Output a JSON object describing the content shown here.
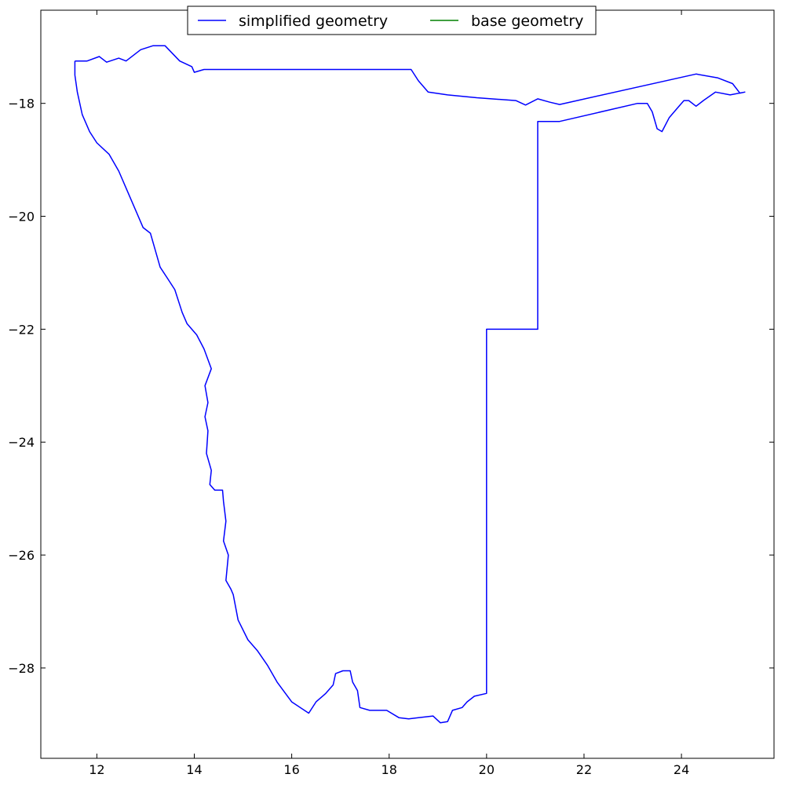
{
  "chart_data": {
    "type": "line",
    "title": "",
    "xlabel": "",
    "ylabel": "",
    "xlim": [
      10.85,
      25.9
    ],
    "ylim": [
      -29.6,
      -16.35
    ],
    "x_ticks": [
      12,
      14,
      16,
      18,
      20,
      22,
      24
    ],
    "x_tick_labels": [
      "12",
      "14",
      "16",
      "18",
      "20",
      "22",
      "24"
    ],
    "y_ticks": [
      -18,
      -20,
      -22,
      -24,
      -26,
      -28
    ],
    "y_tick_labels": [
      "−18",
      "−20",
      "−22",
      "−24",
      "−26",
      "−28"
    ],
    "grid": false,
    "legend": {
      "placement": "top-center",
      "columns": 2
    },
    "series": [
      {
        "name": "simplified geometry",
        "color": "#0000ff",
        "points": [
          [
            11.55,
            -17.25
          ],
          [
            11.8,
            -17.25
          ],
          [
            12.05,
            -17.17
          ],
          [
            12.2,
            -17.27
          ],
          [
            12.45,
            -17.2
          ],
          [
            12.6,
            -17.25
          ],
          [
            12.9,
            -17.05
          ],
          [
            13.15,
            -16.98
          ],
          [
            13.4,
            -16.98
          ],
          [
            13.7,
            -17.25
          ],
          [
            13.95,
            -17.35
          ],
          [
            14.0,
            -17.45
          ],
          [
            14.2,
            -17.4
          ],
          [
            18.45,
            -17.4
          ],
          [
            18.6,
            -17.6
          ],
          [
            18.8,
            -17.8
          ],
          [
            19.2,
            -17.85
          ],
          [
            19.8,
            -17.9
          ],
          [
            20.6,
            -17.95
          ],
          [
            20.8,
            -18.03
          ],
          [
            21.05,
            -17.92
          ],
          [
            21.3,
            -17.98
          ],
          [
            21.5,
            -18.02
          ],
          [
            24.3,
            -17.48
          ],
          [
            24.75,
            -17.55
          ],
          [
            25.05,
            -17.65
          ],
          [
            25.2,
            -17.82
          ],
          [
            25.3,
            -17.8
          ],
          [
            25.0,
            -17.85
          ],
          [
            24.7,
            -17.8
          ],
          [
            24.45,
            -17.95
          ],
          [
            24.3,
            -18.05
          ],
          [
            24.15,
            -17.95
          ],
          [
            24.05,
            -17.95
          ],
          [
            23.9,
            -18.1
          ],
          [
            23.75,
            -18.25
          ],
          [
            23.6,
            -18.5
          ],
          [
            23.5,
            -18.45
          ],
          [
            23.4,
            -18.15
          ],
          [
            23.3,
            -18.0
          ],
          [
            23.1,
            -18.0
          ],
          [
            21.5,
            -18.32
          ],
          [
            21.05,
            -18.32
          ],
          [
            21.05,
            -22.0
          ],
          [
            20.0,
            -22.0
          ],
          [
            20.0,
            -28.45
          ],
          [
            19.75,
            -28.5
          ],
          [
            19.6,
            -28.6
          ],
          [
            19.5,
            -28.7
          ],
          [
            19.3,
            -28.75
          ],
          [
            19.2,
            -28.95
          ],
          [
            19.05,
            -28.97
          ],
          [
            18.9,
            -28.85
          ],
          [
            18.6,
            -28.88
          ],
          [
            18.4,
            -28.9
          ],
          [
            18.2,
            -28.88
          ],
          [
            17.95,
            -28.75
          ],
          [
            17.6,
            -28.75
          ],
          [
            17.4,
            -28.7
          ],
          [
            17.35,
            -28.4
          ],
          [
            17.25,
            -28.25
          ],
          [
            17.2,
            -28.05
          ],
          [
            17.05,
            -28.05
          ],
          [
            16.9,
            -28.1
          ],
          [
            16.85,
            -28.3
          ],
          [
            16.7,
            -28.45
          ],
          [
            16.5,
            -28.6
          ],
          [
            16.35,
            -28.8
          ],
          [
            16.0,
            -28.6
          ],
          [
            15.7,
            -28.25
          ],
          [
            15.5,
            -27.95
          ],
          [
            15.3,
            -27.7
          ],
          [
            15.1,
            -27.5
          ],
          [
            14.9,
            -27.15
          ],
          [
            14.8,
            -26.7
          ],
          [
            14.75,
            -26.6
          ],
          [
            14.65,
            -26.45
          ],
          [
            14.7,
            -26.0
          ],
          [
            14.6,
            -25.75
          ],
          [
            14.65,
            -25.4
          ],
          [
            14.6,
            -25.05
          ],
          [
            14.58,
            -24.85
          ],
          [
            14.42,
            -24.85
          ],
          [
            14.32,
            -24.75
          ],
          [
            14.35,
            -24.5
          ],
          [
            14.25,
            -24.2
          ],
          [
            14.28,
            -23.8
          ],
          [
            14.22,
            -23.55
          ],
          [
            14.28,
            -23.3
          ],
          [
            14.22,
            -23.0
          ],
          [
            14.35,
            -22.7
          ],
          [
            14.2,
            -22.35
          ],
          [
            14.05,
            -22.1
          ],
          [
            13.85,
            -21.9
          ],
          [
            13.75,
            -21.7
          ],
          [
            13.6,
            -21.3
          ],
          [
            13.45,
            -21.1
          ],
          [
            13.3,
            -20.9
          ],
          [
            13.2,
            -20.6
          ],
          [
            13.1,
            -20.3
          ],
          [
            12.95,
            -20.2
          ],
          [
            12.8,
            -19.9
          ],
          [
            12.6,
            -19.5
          ],
          [
            12.45,
            -19.2
          ],
          [
            12.25,
            -18.9
          ],
          [
            12.0,
            -18.7
          ],
          [
            11.85,
            -18.5
          ],
          [
            11.7,
            -18.2
          ],
          [
            11.6,
            -17.8
          ],
          [
            11.55,
            -17.5
          ],
          [
            11.55,
            -17.25
          ]
        ]
      },
      {
        "name": "base geometry",
        "color": "#008000",
        "points": []
      }
    ]
  }
}
